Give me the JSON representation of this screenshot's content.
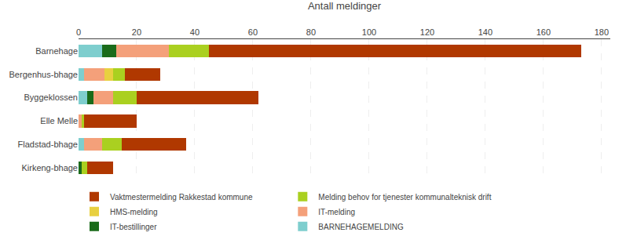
{
  "chart_data": {
    "type": "bar",
    "orientation": "horizontal",
    "stacked": true,
    "xlabel": "Antall meldinger",
    "categories": [
      "Barnehage",
      "Bergenhus-bhage",
      "Byggeklossen",
      "Elle Melle",
      "Fladstad-bhage",
      "Kirkeng-bhage"
    ],
    "series": [
      {
        "name": "BARNEHAGEMELDING",
        "color": "#7ecece",
        "values": [
          8,
          2,
          3,
          0,
          2,
          0
        ]
      },
      {
        "name": "IT-bestillinger",
        "color": "#1a6b1a",
        "values": [
          5,
          0,
          2,
          0,
          0,
          1
        ]
      },
      {
        "name": "IT-melding",
        "color": "#f4a07a",
        "values": [
          18,
          7,
          7,
          1,
          6,
          0
        ]
      },
      {
        "name": "HMS-melding",
        "color": "#e8d040",
        "values": [
          0,
          3,
          0,
          0,
          0,
          0
        ]
      },
      {
        "name": "Melding behov for tjenester kommunalteknisk drift",
        "color": "#aad020",
        "values": [
          14,
          4,
          8,
          1,
          7,
          2
        ]
      },
      {
        "name": "Vaktmestermelding Rakkestad kommune",
        "color": "#b03800",
        "values": [
          128,
          12,
          42,
          18,
          22,
          9
        ]
      }
    ],
    "xlim": [
      0,
      183
    ],
    "xticks": [
      0,
      20,
      40,
      60,
      80,
      100,
      120,
      140,
      160,
      180
    ],
    "grid": true,
    "legend": "bottom"
  }
}
